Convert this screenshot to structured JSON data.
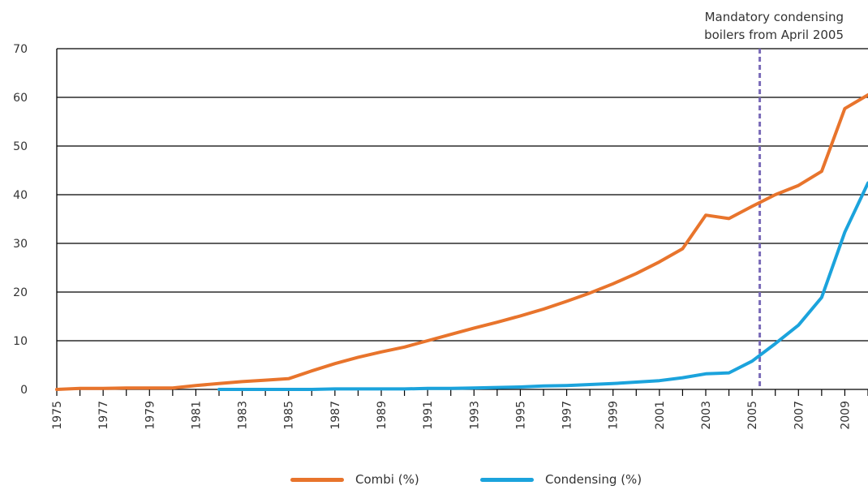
{
  "chart_data": {
    "type": "line",
    "title": "",
    "xlabel": "",
    "ylabel": "",
    "ylim": [
      0,
      70
    ],
    "yticks": [
      0,
      10,
      20,
      30,
      40,
      50,
      60,
      70
    ],
    "xlim": [
      1975,
      2010
    ],
    "xtick_labels": [
      "1975",
      "1977",
      "1979",
      "1981",
      "1983",
      "1985",
      "1987",
      "1989",
      "1991",
      "1993",
      "1995",
      "1997",
      "1999",
      "2001",
      "2003",
      "2005",
      "2007",
      "2009"
    ],
    "grid": "horizontal",
    "legend": "bottom",
    "series": [
      {
        "name": "Combi (%)",
        "color": "#e8742c",
        "x": [
          1975,
          1976,
          1977,
          1978,
          1979,
          1980,
          1981,
          1982,
          1983,
          1984,
          1985,
          1986,
          1987,
          1988,
          1989,
          1990,
          1991,
          1992,
          1993,
          1994,
          1995,
          1996,
          1997,
          1998,
          1999,
          2000,
          2001,
          2002,
          2003,
          2004,
          2005,
          2006,
          2007,
          2008,
          2009,
          2010
        ],
        "values": [
          0,
          0.2,
          0.2,
          0.3,
          0.3,
          0.3,
          0.8,
          1.2,
          1.6,
          1.9,
          2.2,
          3.8,
          5.3,
          6.6,
          7.7,
          8.7,
          10,
          11.3,
          12.6,
          13.8,
          15.1,
          16.5,
          18.1,
          19.8,
          21.7,
          23.8,
          26.2,
          28.9,
          35.8,
          35.1,
          37.6,
          40,
          41.9,
          44.8,
          57.7,
          60.5
        ]
      },
      {
        "name": "Condensing (%)",
        "color": "#1ba3dc",
        "x": [
          1982,
          1983,
          1984,
          1985,
          1986,
          1987,
          1988,
          1989,
          1990,
          1991,
          1992,
          1993,
          1994,
          1995,
          1996,
          1997,
          1998,
          1999,
          2000,
          2001,
          2002,
          2003,
          2004,
          2005,
          2006,
          2007,
          2008,
          2009,
          2010
        ],
        "values": [
          0,
          0,
          0,
          0,
          0,
          0.1,
          0.1,
          0.1,
          0.1,
          0.2,
          0.2,
          0.3,
          0.4,
          0.5,
          0.7,
          0.8,
          1,
          1.2,
          1.5,
          1.8,
          2.4,
          3.2,
          3.4,
          5.8,
          9.4,
          13.2,
          18.9,
          32.3,
          42.4
        ]
      }
    ],
    "annotations": [
      {
        "x": 2005.33,
        "text_lines": [
          "Mandatory condensing",
          "boilers from April 2005"
        ],
        "color": "#7a6bb8",
        "style": "dashed"
      }
    ]
  }
}
